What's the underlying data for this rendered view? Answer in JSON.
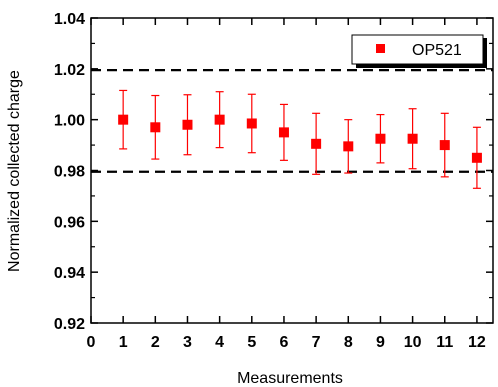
{
  "chart_data": {
    "type": "scatter",
    "title": "",
    "xlabel": "Measurements",
    "ylabel": "Normalized collected charge",
    "xlim": [
      0,
      12.5
    ],
    "ylim": [
      0.92,
      1.04
    ],
    "xticks": [
      "0",
      "1",
      "2",
      "3",
      "4",
      "5",
      "6",
      "7",
      "8",
      "9",
      "10",
      "11",
      "12"
    ],
    "yticks": [
      "0.92",
      "0.94",
      "0.96",
      "0.98",
      "1.00",
      "1.02",
      "1.04"
    ],
    "grid": false,
    "legend_position": "top-right",
    "series": [
      {
        "name": "OP521",
        "color": "#ff0000",
        "marker": "square",
        "points": [
          {
            "x": 1,
            "y": 1.0,
            "err_low": 0.0115,
            "err_high": 0.0115
          },
          {
            "x": 2,
            "y": 0.997,
            "err_low": 0.0125,
            "err_high": 0.0125
          },
          {
            "x": 3,
            "y": 0.998,
            "err_low": 0.0118,
            "err_high": 0.0118
          },
          {
            "x": 4,
            "y": 1.0,
            "err_low": 0.011,
            "err_high": 0.011
          },
          {
            "x": 5,
            "y": 0.9985,
            "err_low": 0.0115,
            "err_high": 0.0115
          },
          {
            "x": 6,
            "y": 0.995,
            "err_low": 0.011,
            "err_high": 0.011
          },
          {
            "x": 7,
            "y": 0.9905,
            "err_low": 0.012,
            "err_high": 0.012
          },
          {
            "x": 8,
            "y": 0.9895,
            "err_low": 0.0105,
            "err_high": 0.0105
          },
          {
            "x": 9,
            "y": 0.9925,
            "err_low": 0.0095,
            "err_high": 0.0095
          },
          {
            "x": 10,
            "y": 0.9925,
            "err_low": 0.0118,
            "err_high": 0.0118
          },
          {
            "x": 11,
            "y": 0.99,
            "err_low": 0.0125,
            "err_high": 0.0125
          },
          {
            "x": 12,
            "y": 0.985,
            "err_low": 0.012,
            "err_high": 0.012
          }
        ]
      }
    ],
    "reference_lines": [
      {
        "y": 1.0195,
        "style": "dashed",
        "color": "#000000"
      },
      {
        "y": 0.9795,
        "style": "dashed",
        "color": "#000000"
      }
    ]
  }
}
